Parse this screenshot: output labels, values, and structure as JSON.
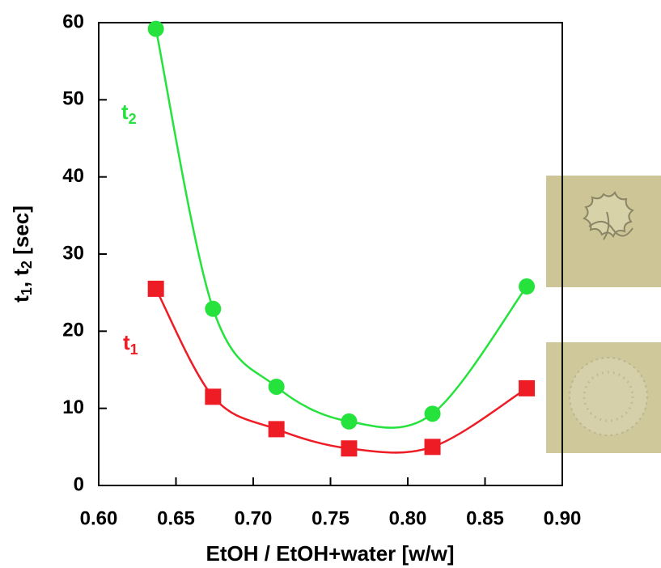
{
  "chart_data": {
    "type": "line",
    "xlabel": "EtOH / EtOH+water [w/w]",
    "ylabel_parts": [
      "t",
      "1",
      ", t",
      "2",
      " [sec]"
    ],
    "x": [
      0.637,
      0.674,
      0.715,
      0.762,
      0.816,
      0.877
    ],
    "series": [
      {
        "name": "t",
        "subscript": "1",
        "color": "#ee1c25",
        "marker": "square",
        "values": [
          25.5,
          11.5,
          7.3,
          4.8,
          5.0,
          12.6
        ]
      },
      {
        "name": "t",
        "subscript": "2",
        "color": "#25e23c",
        "marker": "circle",
        "values": [
          59.2,
          22.9,
          12.8,
          8.3,
          9.3,
          25.8
        ]
      }
    ],
    "xlim": [
      0.6,
      0.9
    ],
    "xticks": [
      {
        "value": 0.6,
        "label": "0.60"
      },
      {
        "value": 0.65,
        "label": "0.65"
      },
      {
        "value": 0.7,
        "label": "0.70"
      },
      {
        "value": 0.75,
        "label": "0.75"
      },
      {
        "value": 0.8,
        "label": "0.80"
      },
      {
        "value": 0.85,
        "label": "0.85"
      },
      {
        "value": 0.9,
        "label": "0.90"
      }
    ],
    "ylim": [
      0,
      60
    ],
    "yticks": [
      0,
      10,
      20,
      30,
      40,
      50,
      60
    ]
  }
}
